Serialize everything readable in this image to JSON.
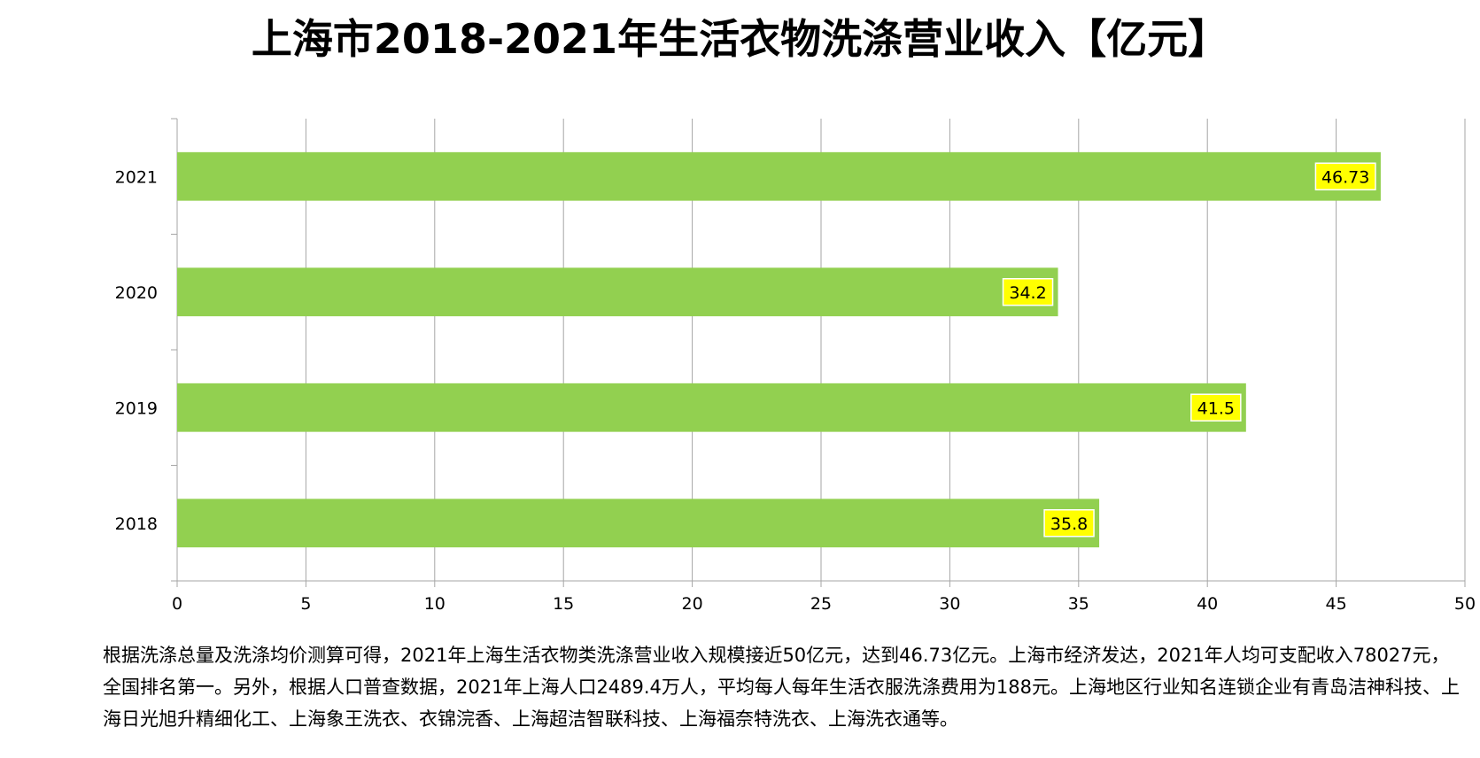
{
  "chart_data": {
    "type": "bar",
    "orientation": "horizontal",
    "title": "上海市2018-2021年生活衣物洗涤营业收入【亿元】",
    "categories": [
      "2021",
      "2020",
      "2019",
      "2018"
    ],
    "values": [
      46.73,
      34.2,
      41.5,
      35.8
    ],
    "value_labels": [
      "46.73",
      "34.2",
      "41.5",
      "35.8"
    ],
    "xlim": [
      0,
      50
    ],
    "x_ticks": [
      0,
      5,
      10,
      15,
      20,
      25,
      30,
      35,
      40,
      45,
      50
    ],
    "xlabel": "",
    "ylabel": "",
    "grid": "vertical",
    "legend": "none",
    "bar_color": "#92d050",
    "label_bg_color": "#ffff00",
    "gridline_color": "#a6a6a6"
  },
  "note": "根据洗涤总量及洗涤均价测算可得，2021年上海生活衣物类洗涤营业收入规模接近50亿元，达到46.73亿元。上海市经济发达，2021年人均可支配收入78027元，全国排名第一。另外，根据人口普查数据，2021年上海人口2489.4万人，平均每人每年生活衣服洗涤费用为188元。上海地区行业知名连锁企业有青岛洁神科技、上海日光旭升精细化工、上海象王洗衣、衣锦浣香、上海超洁智联科技、上海福奈特洗衣、上海洗衣通等。"
}
